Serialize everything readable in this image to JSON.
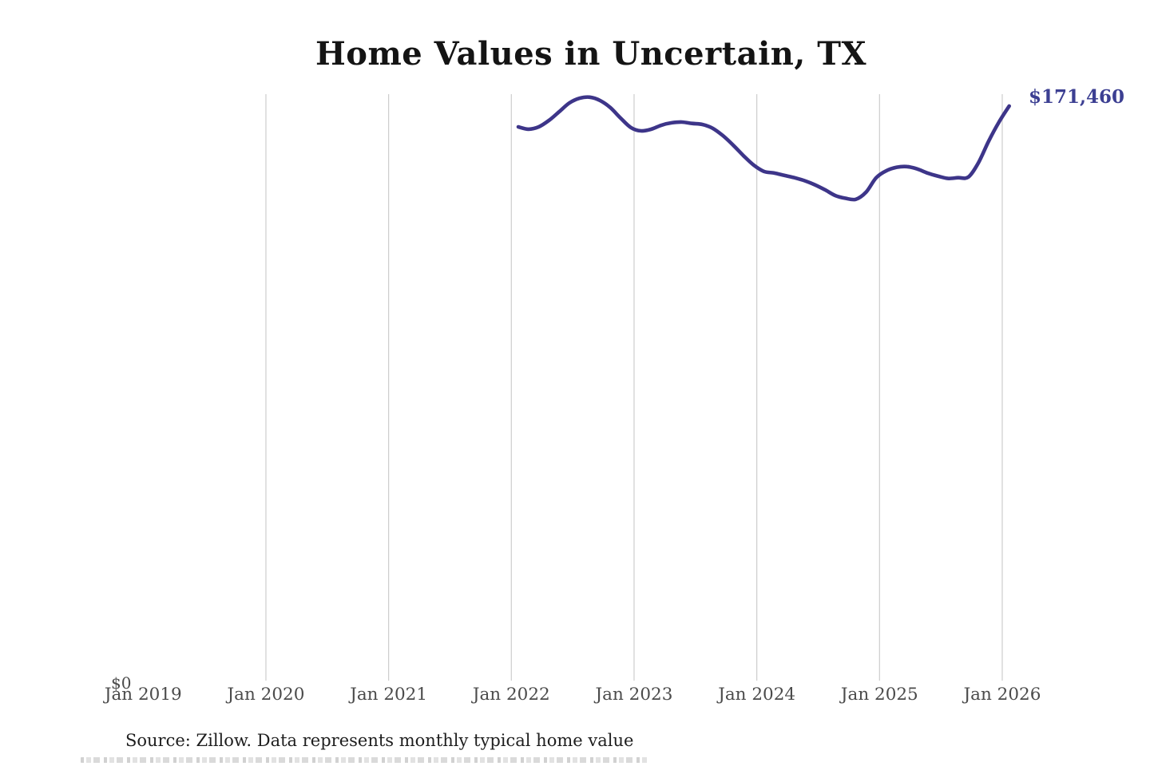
{
  "page": {
    "title": "Home Values in Uncertain, TX",
    "source_note": "Source: Zillow. Data represents monthly typical home value"
  },
  "chart_data": {
    "type": "line",
    "title": "Home Values in Uncertain, TX",
    "series_name": "Monthly typical home value",
    "x_start": "2022-01",
    "x_interval": "monthly",
    "values": [
      165300,
      164600,
      165300,
      167200,
      169800,
      172400,
      173800,
      174100,
      173100,
      171000,
      167900,
      165100,
      164100,
      164600,
      165800,
      166500,
      166700,
      166300,
      166000,
      164900,
      162700,
      159900,
      156800,
      154000,
      152100,
      151600,
      150900,
      150200,
      149300,
      148100,
      146600,
      144900,
      144100,
      143800,
      145900,
      150200,
      152300,
      153300,
      153500,
      152800,
      151600,
      150700,
      150000,
      150200,
      150400,
      154700,
      161100,
      166700,
      171460
    ],
    "x_ticks": [
      {
        "label": "Jan 2019",
        "gridline": false
      },
      {
        "label": "Jan 2020",
        "gridline": true
      },
      {
        "label": "Jan 2021",
        "gridline": true
      },
      {
        "label": "Jan 2022",
        "gridline": true
      },
      {
        "label": "Jan 2023",
        "gridline": true
      },
      {
        "label": "Jan 2024",
        "gridline": true
      },
      {
        "label": "Jan 2025",
        "gridline": true
      },
      {
        "label": "Jan 2026",
        "gridline": true
      }
    ],
    "y_axis": {
      "min": 0,
      "max": 175000,
      "min_label": "$0"
    },
    "end_value": 171460,
    "end_label": "$171,460",
    "grid_on": true,
    "legend": "none",
    "line_color": "#3d3589",
    "end_label_color": "#3c3f92",
    "gridline_color": "#cdcdcd"
  }
}
